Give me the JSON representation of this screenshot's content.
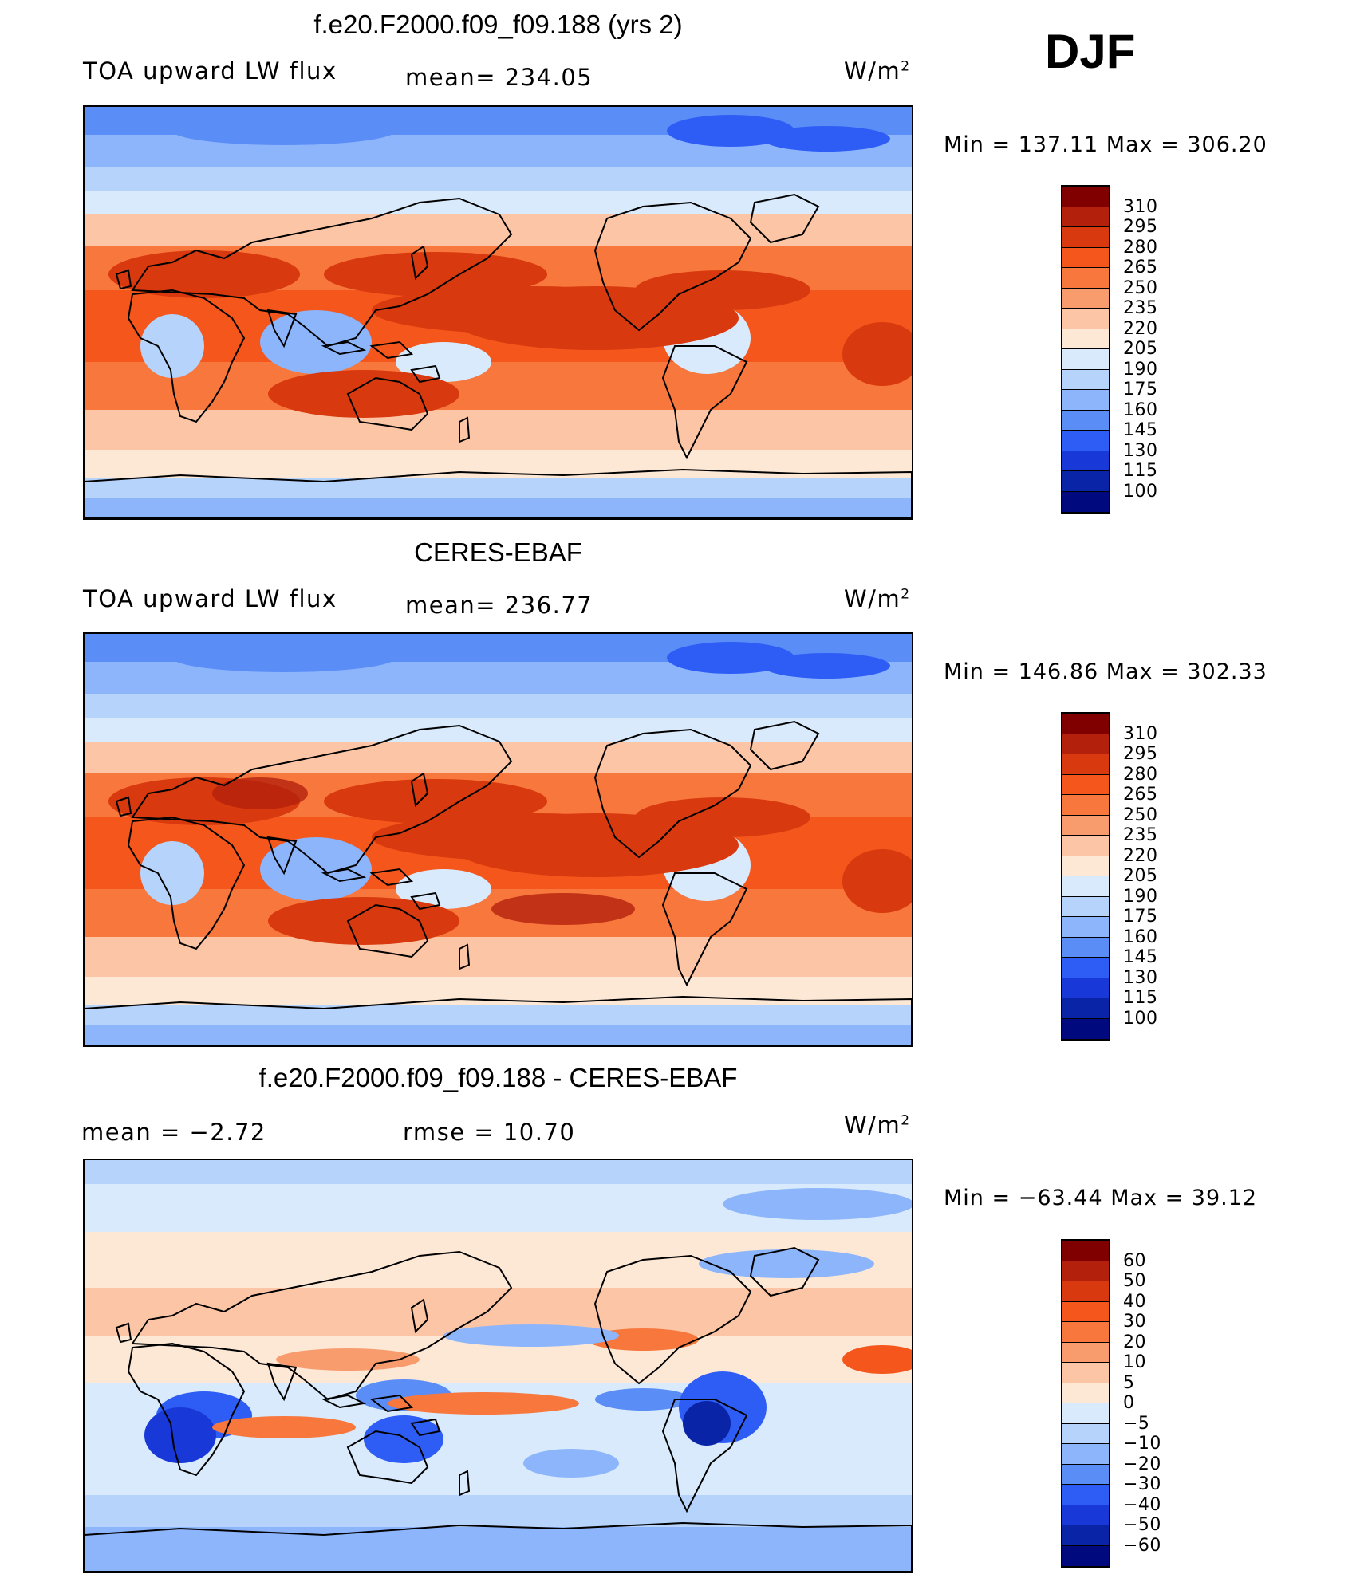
{
  "season": "DJF",
  "chart_data": [
    {
      "type": "heatmap",
      "title": "f.e20.F2000.f09_f09.188 (yrs 2)",
      "left_label": "TOA upward LW flux",
      "center_label": "mean=  234.05",
      "units_label": "W/m",
      "units_exp": "2",
      "stats": "Min  =  137.11  Max  =  306.20",
      "colorbar": {
        "levels": [
          "310",
          "295",
          "280",
          "265",
          "250",
          "235",
          "220",
          "205",
          "190",
          "175",
          "160",
          "145",
          "130",
          "115",
          "100"
        ],
        "colors": [
          "#800000",
          "#b3200c",
          "#d8390e",
          "#f4561b",
          "#f7773c",
          "#f89c6e",
          "#fcc6a6",
          "#fde8d6",
          "#d8eafb",
          "#b5d3fb",
          "#8db5fb",
          "#5b8df7",
          "#2e5df5",
          "#1839d8",
          "#0a24a8",
          "#000a7e"
        ]
      }
    },
    {
      "type": "heatmap",
      "title": "CERES-EBAF",
      "left_label": "TOA upward LW flux",
      "center_label": "mean=  236.77",
      "units_label": "W/m",
      "units_exp": "2",
      "stats": "Min  =  146.86  Max  =  302.33",
      "colorbar": {
        "levels": [
          "310",
          "295",
          "280",
          "265",
          "250",
          "235",
          "220",
          "205",
          "190",
          "175",
          "160",
          "145",
          "130",
          "115",
          "100"
        ],
        "colors": [
          "#800000",
          "#b3200c",
          "#d8390e",
          "#f4561b",
          "#f7773c",
          "#f89c6e",
          "#fcc6a6",
          "#fde8d6",
          "#d8eafb",
          "#b5d3fb",
          "#8db5fb",
          "#5b8df7",
          "#2e5df5",
          "#1839d8",
          "#0a24a8",
          "#000a7e"
        ]
      }
    },
    {
      "type": "heatmap",
      "title": "f.e20.F2000.f09_f09.188 - CERES-EBAF",
      "left_label": "mean  =    −2.72",
      "center_label": "rmse  =    10.70",
      "units_label": "W/m",
      "units_exp": "2",
      "stats": "Min  =  −63.44  Max  =    39.12",
      "colorbar": {
        "levels": [
          "60",
          "50",
          "40",
          "30",
          "20",
          "10",
          "5",
          "0",
          "−5",
          "−10",
          "−20",
          "−30",
          "−40",
          "−50",
          "−60"
        ],
        "colors": [
          "#800000",
          "#b3200c",
          "#d8390e",
          "#f4561b",
          "#f7773c",
          "#f89c6e",
          "#fcc6a6",
          "#fde8d6",
          "#d8eafb",
          "#b5d3fb",
          "#8db5fb",
          "#5b8df7",
          "#2e5df5",
          "#1839d8",
          "#0a24a8",
          "#000a7e"
        ]
      }
    }
  ]
}
